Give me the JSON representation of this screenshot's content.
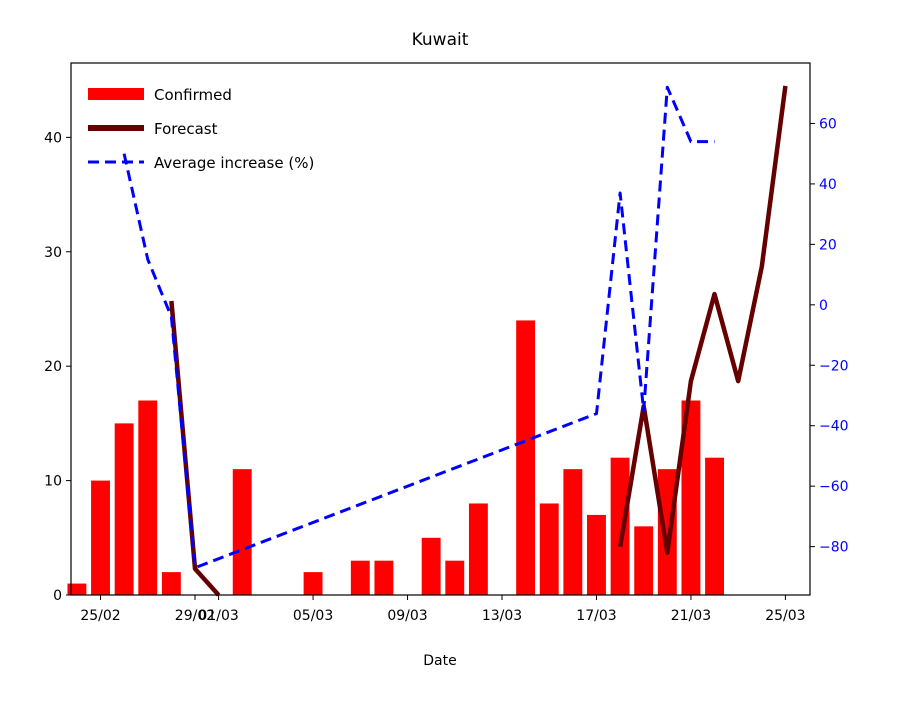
{
  "chart_data": {
    "type": "bar",
    "title": "Kuwait",
    "xlabel": "Date",
    "ylabel": "",
    "y2label": "",
    "xlim": [
      "2020-02-23T18:00",
      "2020-03-26T01:00"
    ],
    "ylim": [
      0,
      46.5
    ],
    "y2lim": [
      -96,
      80
    ],
    "x_ticks": [
      "25/02",
      "29/02",
      "01/03",
      "05/03",
      "09/03",
      "13/03",
      "17/03",
      "21/03",
      "25/03"
    ],
    "x_tick_dates": [
      "2020-02-25",
      "2020-02-29",
      "2020-03-01",
      "2020-03-05",
      "2020-03-09",
      "2020-03-13",
      "2020-03-17",
      "2020-03-21",
      "2020-03-25"
    ],
    "y_ticks": [
      0,
      10,
      20,
      30,
      40
    ],
    "y2_ticks": [
      -80,
      -60,
      -40,
      -20,
      0,
      20,
      40,
      60
    ],
    "y2_tick_labels": [
      "−80",
      "−60",
      "−40",
      "−20",
      "0",
      "20",
      "40",
      "60"
    ],
    "legend": {
      "placement": "top-left",
      "entries": [
        "Confirmed",
        "Forecast",
        "Average increase (%)"
      ]
    },
    "series": [
      {
        "name": "Confirmed",
        "type": "bar",
        "color": "#ff0000",
        "x": [
          "2020-02-24",
          "2020-02-25",
          "2020-02-26",
          "2020-02-27",
          "2020-02-28",
          "2020-02-29",
          "2020-03-01",
          "2020-03-02",
          "2020-03-03",
          "2020-03-04",
          "2020-03-05",
          "2020-03-06",
          "2020-03-07",
          "2020-03-08",
          "2020-03-09",
          "2020-03-10",
          "2020-03-11",
          "2020-03-12",
          "2020-03-13",
          "2020-03-14",
          "2020-03-15",
          "2020-03-16",
          "2020-03-17",
          "2020-03-18",
          "2020-03-19",
          "2020-03-20",
          "2020-03-21",
          "2020-03-22"
        ],
        "values": [
          1,
          10,
          15,
          17,
          2,
          0,
          0,
          11,
          0,
          0,
          2,
          0,
          3,
          3,
          0,
          5,
          3,
          8,
          0,
          24,
          8,
          11,
          7,
          12,
          6,
          11,
          17,
          12
        ]
      },
      {
        "name": "Forecast",
        "type": "line",
        "axis": "left",
        "color": "#660000",
        "x": [
          "2020-02-28",
          "2020-02-29",
          "2020-03-01",
          "2020-03-18",
          "2020-03-19",
          "2020-03-20",
          "2020-03-21",
          "2020-03-22",
          "2020-03-23",
          "2020-03-24",
          "2020-03-25"
        ],
        "values": [
          25.7,
          2.3,
          0,
          4.2,
          16.5,
          3.7,
          18.7,
          26.3,
          18.7,
          28.7,
          44.5
        ]
      },
      {
        "name": "Average increase (%)",
        "type": "line",
        "style": "dashed",
        "axis": "right",
        "color": "#0000ff",
        "x": [
          "2020-02-26",
          "2020-02-27",
          "2020-02-28",
          "2020-02-29",
          "2020-03-17",
          "2020-03-18",
          "2020-03-19",
          "2020-03-20",
          "2020-03-21",
          "2020-03-22"
        ],
        "values": [
          50,
          15,
          -4,
          -87,
          -36,
          37,
          -35,
          72,
          54,
          54
        ]
      }
    ],
    "grid": false
  }
}
